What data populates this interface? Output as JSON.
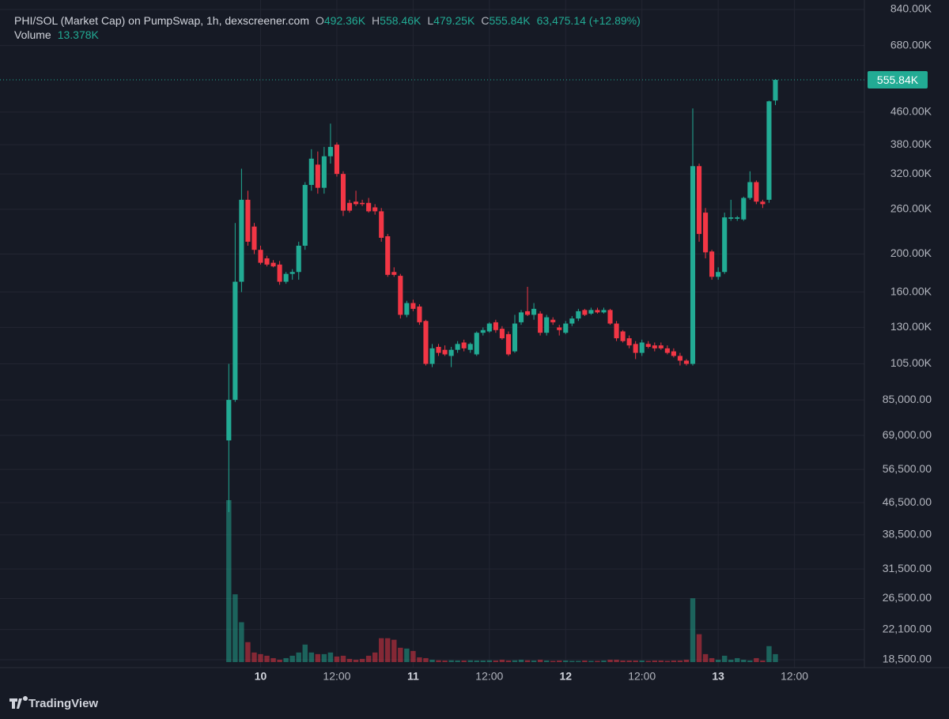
{
  "chart_data": {
    "type": "candlestick",
    "title": "PHI/SOL (Market Cap) on PumpSwap, 1h, dexscreener.com",
    "ohlc_legend": [
      {
        "key": "O",
        "value": "492.36K"
      },
      {
        "key": "H",
        "value": "558.46K"
      },
      {
        "key": "L",
        "value": "479.25K"
      },
      {
        "key": "C",
        "value": "555.84K"
      }
    ],
    "change": "63,475.14 (+12.89%)",
    "volume_name": "Volume",
    "volume_label": "13.378K",
    "close_label": "555.84K",
    "footer": "TradingView",
    "up_color": "#22ab94",
    "down_color": "#f23645",
    "log_scale": true,
    "grid": true,
    "x": [
      0,
      1,
      2,
      3,
      4,
      5,
      6,
      7,
      8,
      9,
      10,
      11,
      12,
      13,
      14,
      15,
      16,
      17,
      18,
      19,
      20,
      21,
      22,
      23,
      24,
      25,
      26,
      27,
      28,
      29,
      30,
      31,
      32,
      33,
      34,
      35,
      36,
      37,
      38,
      39,
      40,
      41,
      42,
      43,
      44,
      45,
      46,
      47,
      48,
      49,
      50,
      51,
      52,
      53,
      54,
      55,
      56,
      57,
      58,
      59,
      60,
      61,
      62,
      63,
      64,
      65,
      66,
      67,
      68,
      69,
      70,
      71,
      72,
      73,
      74,
      75,
      76,
      77,
      78,
      79,
      80,
      81,
      82,
      83,
      84,
      85,
      86
    ],
    "open": [
      67000,
      85000,
      170000,
      275000,
      235000,
      205000,
      195000,
      190000,
      188000,
      170000,
      178000,
      180000,
      210000,
      300000,
      338000,
      295000,
      355000,
      380000,
      320000,
      270000,
      272000,
      270000,
      270000,
      263000,
      257000,
      222000,
      180000,
      176000,
      140000,
      150000,
      147000,
      135000,
      105000,
      116000,
      114000,
      110000,
      114000,
      119000,
      114000,
      111000,
      126000,
      127000,
      134000,
      129000,
      125000,
      113000,
      134000,
      143000,
      140000,
      141000,
      126000,
      136000,
      130000,
      126000,
      133000,
      137000,
      144000,
      141000,
      144000,
      142000,
      144000,
      133000,
      127000,
      122000,
      118000,
      112000,
      118000,
      117000,
      117000,
      115000,
      113000,
      110000,
      107000,
      105000,
      335000,
      255000,
      203000,
      175000,
      180000,
      246000,
      246000,
      245000,
      278000,
      305000,
      272000,
      275000,
      492360
    ],
    "high": [
      105000,
      240000,
      330000,
      290000,
      240000,
      210000,
      198000,
      193000,
      192000,
      180000,
      183000,
      215000,
      305000,
      370000,
      365000,
      375000,
      430000,
      385000,
      325000,
      275000,
      290000,
      275000,
      278000,
      268000,
      262000,
      225000,
      185000,
      178000,
      152000,
      153000,
      149000,
      136000,
      118000,
      118000,
      117000,
      116000,
      120000,
      121000,
      119000,
      127000,
      130000,
      134000,
      136000,
      131000,
      127000,
      140000,
      144000,
      165000,
      150000,
      143000,
      140000,
      138000,
      132000,
      135000,
      139000,
      145000,
      145000,
      146000,
      146000,
      146000,
      145000,
      135000,
      128000,
      124000,
      120000,
      121000,
      120000,
      119000,
      119000,
      117000,
      115000,
      112000,
      108000,
      470000,
      340000,
      262000,
      205000,
      185000,
      255000,
      275000,
      250000,
      280000,
      325000,
      308000,
      275000,
      492000,
      558460
    ],
    "low": [
      44000,
      84000,
      160000,
      210000,
      200000,
      188000,
      186000,
      185000,
      167000,
      168000,
      172000,
      172000,
      205000,
      290000,
      285000,
      285000,
      340000,
      315000,
      250000,
      255000,
      265000,
      265000,
      255000,
      252000,
      215000,
      175000,
      175000,
      137000,
      138000,
      143000,
      132000,
      104000,
      103000,
      110000,
      110000,
      103000,
      112000,
      113000,
      112000,
      110000,
      124000,
      126000,
      126000,
      121000,
      110000,
      112000,
      132000,
      139000,
      136000,
      124000,
      124000,
      132000,
      124000,
      125000,
      131000,
      135000,
      139000,
      140000,
      141000,
      141000,
      132000,
      120000,
      119000,
      115000,
      108000,
      110000,
      115000,
      113000,
      114000,
      111000,
      109000,
      104000,
      104000,
      104000,
      215000,
      195000,
      172000,
      172000,
      178000,
      243000,
      243000,
      243000,
      275000,
      268000,
      262000,
      270000,
      479250
    ],
    "close": [
      85000,
      170000,
      275000,
      215000,
      205000,
      190000,
      188000,
      186000,
      170000,
      178000,
      180000,
      210000,
      300000,
      350000,
      295000,
      355000,
      375000,
      320000,
      258000,
      258000,
      268000,
      268000,
      257000,
      257000,
      220000,
      177000,
      177000,
      140000,
      150000,
      145000,
      134000,
      105000,
      115000,
      112000,
      111000,
      114000,
      118000,
      115000,
      118000,
      126000,
      128000,
      133000,
      128000,
      122000,
      111000,
      133000,
      142000,
      140000,
      145000,
      126000,
      138000,
      134000,
      128000,
      133000,
      137000,
      143000,
      140000,
      144000,
      142000,
      144000,
      133000,
      122000,
      120000,
      117000,
      112000,
      119000,
      116000,
      115000,
      115000,
      112000,
      110000,
      107000,
      105000,
      335000,
      225000,
      202000,
      175000,
      180000,
      248000,
      248000,
      248000,
      278000,
      305000,
      272000,
      268000,
      490000,
      555840
    ],
    "volume": [
      271600,
      113700,
      66900,
      33500,
      16100,
      13400,
      10700,
      6700,
      4000,
      6700,
      10700,
      16100,
      29400,
      16100,
      13400,
      13400,
      16100,
      9400,
      10700,
      5400,
      4000,
      5400,
      10700,
      16100,
      40100,
      40100,
      37500,
      24100,
      22700,
      18700,
      8000,
      6700,
      4000,
      3000,
      2700,
      3000,
      2700,
      2700,
      3000,
      2700,
      2700,
      3000,
      2700,
      4000,
      2700,
      3000,
      4000,
      3000,
      2700,
      4000,
      2700,
      2000,
      2700,
      2700,
      2000,
      2000,
      2700,
      2000,
      2000,
      2700,
      4000,
      4000,
      2700,
      2700,
      2700,
      2700,
      2000,
      2700,
      2700,
      2000,
      2700,
      2700,
      4000,
      107000,
      46800,
      13400,
      6700,
      4000,
      10700,
      4000,
      6700,
      4000,
      2700,
      6700,
      2700,
      26800,
      13378
    ],
    "xlim": [
      -36,
      100
    ],
    "xticks": [
      {
        "value": 5,
        "label": "10"
      },
      {
        "value": 17,
        "label": "12:00"
      },
      {
        "value": 29,
        "label": "11"
      },
      {
        "value": 41,
        "label": "12:00"
      },
      {
        "value": 53,
        "label": "12"
      },
      {
        "value": 65,
        "label": "12:00"
      },
      {
        "value": 77,
        "label": "13"
      },
      {
        "value": 89,
        "label": "12:00"
      }
    ],
    "ylim": [
      17660,
      888000
    ],
    "yticks": [
      {
        "value": 840000,
        "label": "840.00K"
      },
      {
        "value": 680000,
        "label": "680.00K"
      },
      {
        "value": 460000,
        "label": "460.00K"
      },
      {
        "value": 380000,
        "label": "380.00K"
      },
      {
        "value": 320000,
        "label": "320.00K"
      },
      {
        "value": 260000,
        "label": "260.00K"
      },
      {
        "value": 200000,
        "label": "200.00K"
      },
      {
        "value": 160000,
        "label": "160.00K"
      },
      {
        "value": 130000,
        "label": "130.00K"
      },
      {
        "value": 105000,
        "label": "105.00K"
      },
      {
        "value": 85000,
        "label": "85,000.00"
      },
      {
        "value": 69000,
        "label": "69,000.00"
      },
      {
        "value": 56500,
        "label": "56,500.00"
      },
      {
        "value": 46500,
        "label": "46,500.00"
      },
      {
        "value": 38500,
        "label": "38,500.00"
      },
      {
        "value": 31500,
        "label": "31,500.00"
      },
      {
        "value": 26500,
        "label": "26,500.00"
      },
      {
        "value": 22100,
        "label": "22,100.00"
      },
      {
        "value": 18500,
        "label": "18,500.00"
      }
    ]
  }
}
